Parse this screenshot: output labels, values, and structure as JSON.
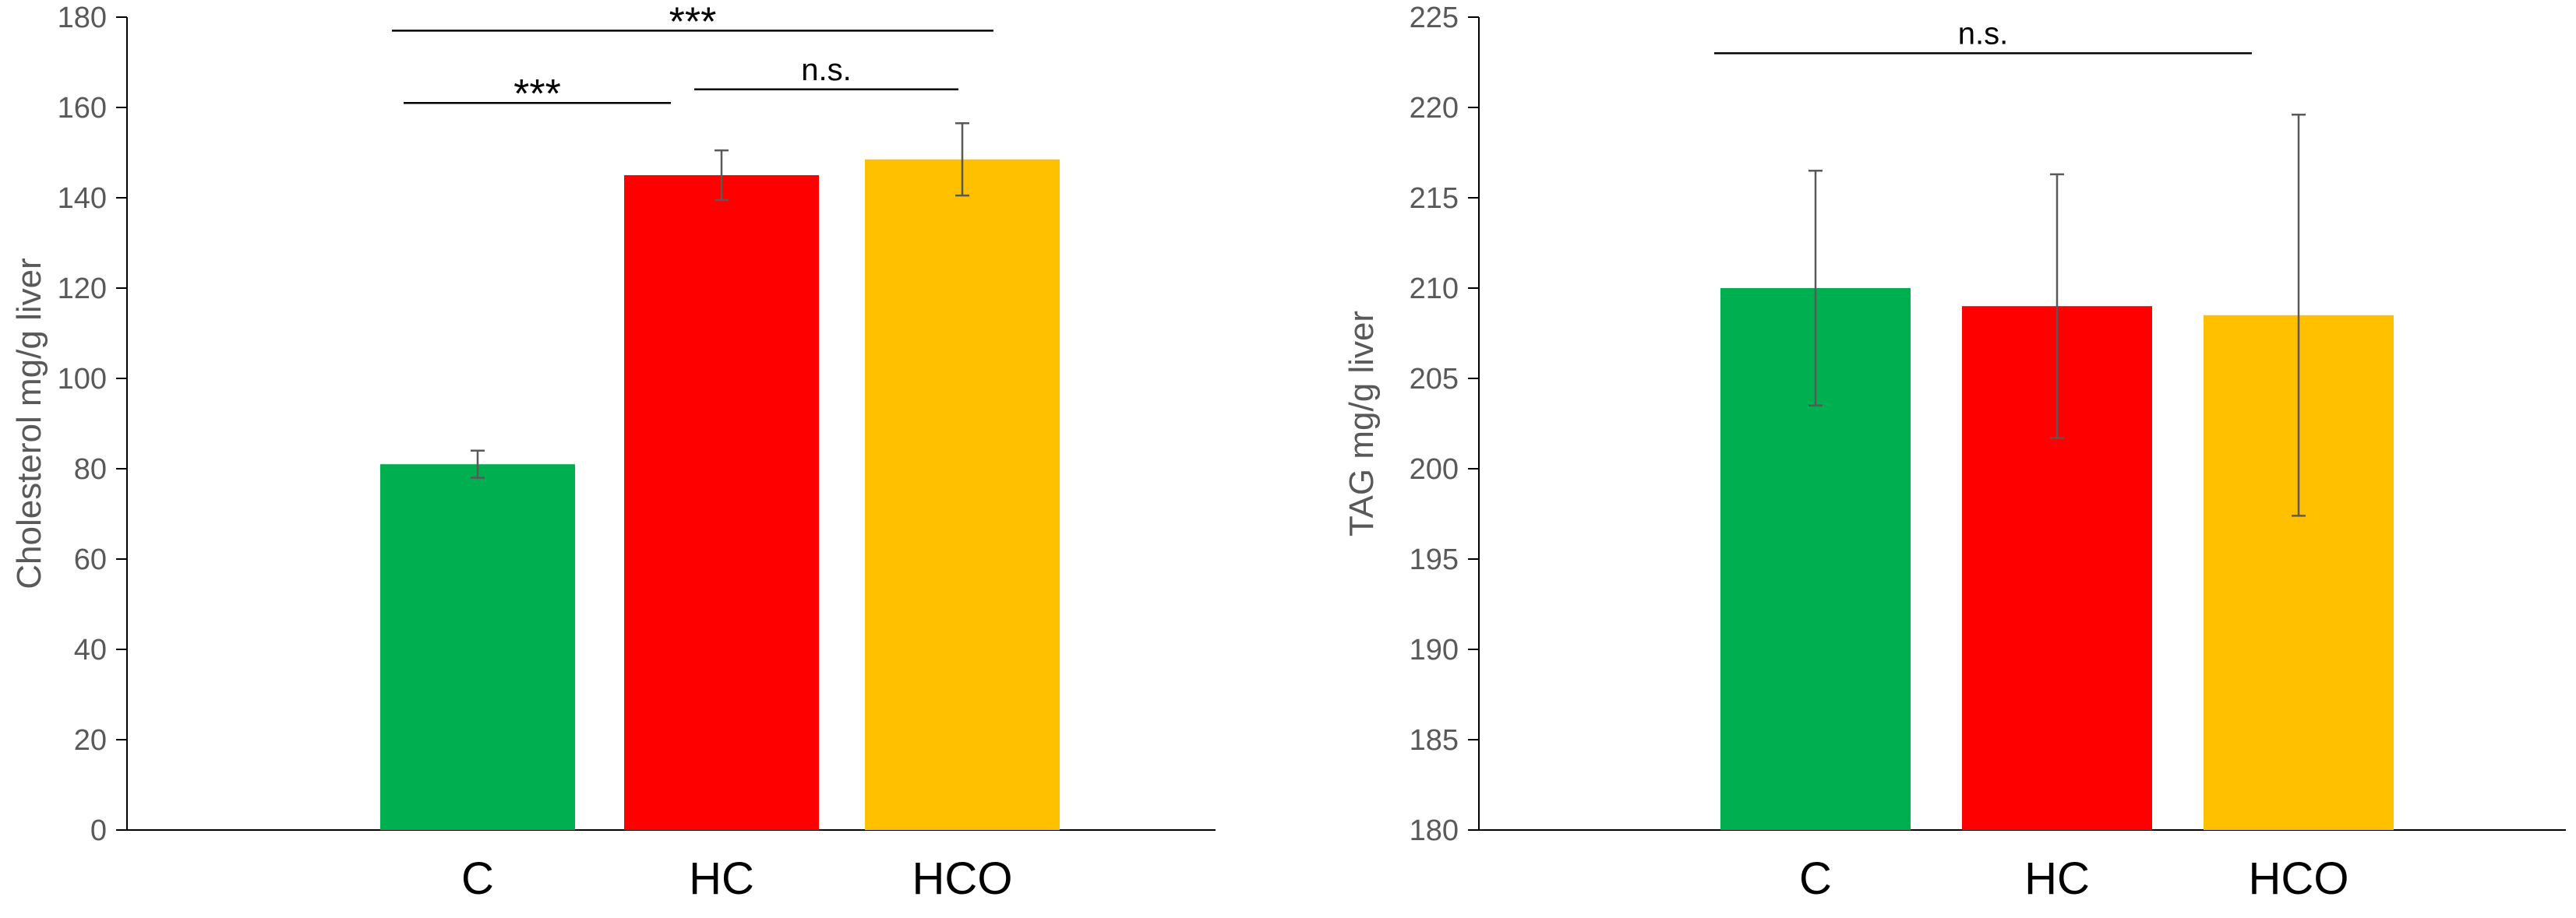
{
  "chart_data": [
    {
      "type": "bar",
      "title": "",
      "xlabel": "",
      "ylabel": "Cholesterol mg/g liver",
      "categories": [
        "C",
        "HC",
        "HCO"
      ],
      "values": [
        81,
        145,
        148.5
      ],
      "errors": [
        3,
        5.5,
        8
      ],
      "colors": [
        "#00b050",
        "#ff0000",
        "#ffc000"
      ],
      "ylim": [
        0,
        180
      ],
      "yticks": [
        0,
        20,
        40,
        60,
        80,
        100,
        120,
        140,
        160,
        180
      ],
      "grid": false,
      "significance": [
        {
          "from": "C",
          "to": "HC",
          "label": "***",
          "y": 161
        },
        {
          "from": "HC",
          "to": "HCO",
          "label": "n.s.",
          "y": 164
        },
        {
          "from": "C",
          "to": "HCO",
          "label": "***",
          "y": 177
        }
      ]
    },
    {
      "type": "bar",
      "title": "",
      "xlabel": "",
      "ylabel": "TAG mg/g liver",
      "categories": [
        "C",
        "HC",
        "HCO"
      ],
      "values": [
        210,
        209,
        208.5
      ],
      "errors": [
        6.5,
        7.3,
        11.1
      ],
      "colors": [
        "#00b050",
        "#ff0000",
        "#ffc000"
      ],
      "ylim": [
        180,
        225
      ],
      "yticks": [
        180,
        185,
        190,
        195,
        200,
        205,
        210,
        215,
        220,
        225
      ],
      "grid": false,
      "significance": [
        {
          "from": "C",
          "to": "HCO",
          "label": "n.s.",
          "y": 223
        }
      ]
    }
  ]
}
